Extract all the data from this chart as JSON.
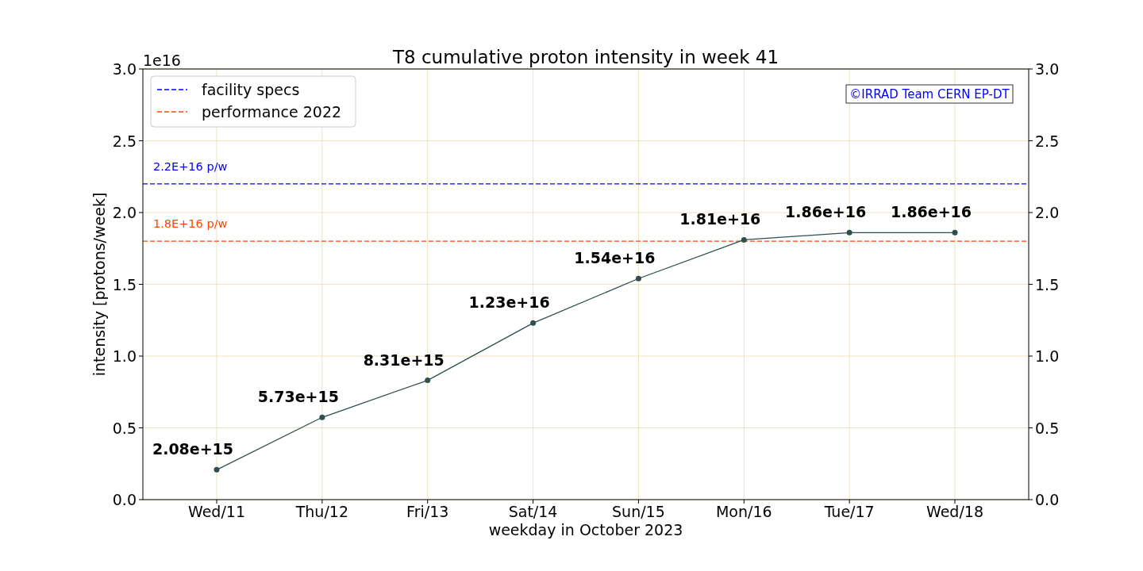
{
  "chart_data": {
    "type": "line",
    "title": "T8 cumulative proton intensity in week 41",
    "xlabel": "weekday in October 2023",
    "ylabel": "intensity [protons/week]",
    "categories": [
      "Wed/11",
      "Thu/12",
      "Fri/13",
      "Sat/14",
      "Sun/15",
      "Mon/16",
      "Tue/17",
      "Wed/18"
    ],
    "series": [
      {
        "color": "#2f4f4f",
        "values": [
          0.208,
          0.573,
          0.831,
          1.23,
          1.54,
          1.81,
          1.86,
          1.86
        ]
      }
    ],
    "ylim": [
      0,
      3
    ],
    "yticks": [
      {
        "value": 0,
        "label": "0.0"
      },
      0.5,
      {
        "value": 1,
        "label": "1.0"
      },
      1.5,
      {
        "value": 2,
        "label": "2.0"
      },
      2.5,
      {
        "value": 3,
        "label": "3.0"
      }
    ],
    "y2lim": [
      0,
      3
    ],
    "y2ticks": [
      {
        "value": 0,
        "label": "0.0"
      },
      0.5,
      {
        "value": 1,
        "label": "1.0"
      },
      1.5,
      {
        "value": 2,
        "label": "2.0"
      },
      2.5,
      {
        "value": 3,
        "label": "3.0"
      }
    ],
    "ref_lines": [
      {
        "axis": "y",
        "value": 2.2,
        "label": "facility specs",
        "color": "#0000ff",
        "line_style": "dashed"
      },
      {
        "axis": "y",
        "value": 1.8,
        "label": "performance 2022",
        "color": "#ff4500",
        "line_style": "dashed"
      }
    ],
    "annotations": [
      "1e16",
      {
        "text": "2.2E+16 p/w",
        "y": 2.2
      },
      {
        "text": "1.8E+16 p/w",
        "y": 1.8
      },
      "©IRRAD Team CERN EP-DT",
      {
        "text": "2.08e+15",
        "x": "Wed/11",
        "y": 0.208
      },
      {
        "text": "5.73e+15",
        "x": "Thu/12",
        "y": 0.573
      },
      {
        "text": "8.31e+15",
        "x": "Fri/13",
        "y": 0.831
      },
      {
        "text": "1.23e+16",
        "x": "Sat/14",
        "y": 1.23
      },
      {
        "text": "1.54e+16",
        "x": "Sun/15",
        "y": 1.54
      },
      {
        "text": "1.81e+16",
        "x": "Mon/16",
        "y": 1.81
      },
      {
        "text": "1.86e+16",
        "x": "Tue/17",
        "y": 1.86
      },
      {
        "text": "1.86e+16",
        "x": "Wed/18",
        "y": 1.86
      }
    ],
    "grid": true,
    "legend": "top left",
    "marker": "circle",
    "line_style": "solid"
  }
}
